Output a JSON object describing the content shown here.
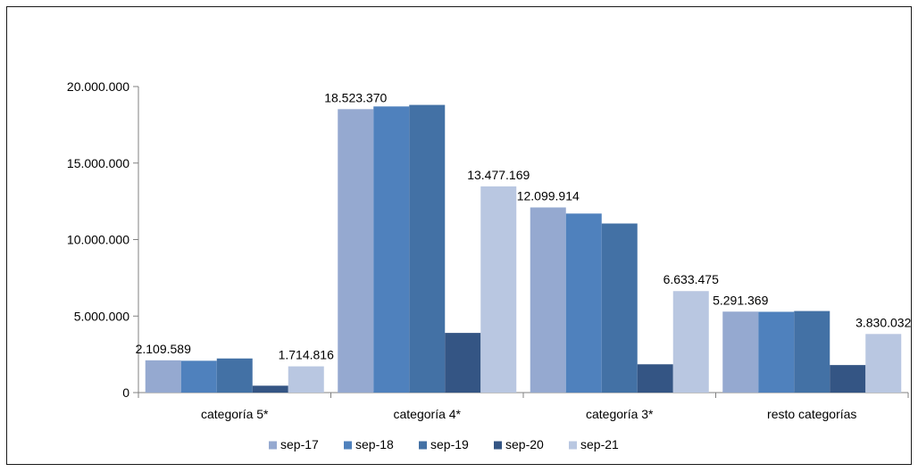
{
  "chart_data": {
    "type": "bar",
    "title": "",
    "xlabel": "",
    "ylabel": "",
    "categories": [
      "categoría 5*",
      "categoría 4*",
      "categoría 3*",
      "resto categorías"
    ],
    "ylim": [
      0,
      20000000
    ],
    "yticks": [
      0,
      5000000,
      10000000,
      15000000,
      20000000
    ],
    "ytick_labels": [
      "0",
      "5.000.000",
      "10.000.000",
      "15.000.000",
      "20.000.000"
    ],
    "grid": false,
    "legend_position": "bottom",
    "series": [
      {
        "name": "sep-17",
        "color": "#95a9d0",
        "values": [
          2109589,
          18523370,
          12099914,
          5291369
        ]
      },
      {
        "name": "sep-18",
        "color": "#4f81bd",
        "values": [
          2080000,
          18700000,
          11700000,
          5280000
        ]
      },
      {
        "name": "sep-19",
        "color": "#4371a5",
        "values": [
          2230000,
          18800000,
          11050000,
          5330000
        ]
      },
      {
        "name": "sep-20",
        "color": "#345584",
        "values": [
          450000,
          3900000,
          1850000,
          1800000
        ]
      },
      {
        "name": "sep-21",
        "color": "#b9c7e1",
        "values": [
          1714816,
          13477169,
          6633475,
          3830032
        ]
      }
    ],
    "data_labels": [
      {
        "category": 0,
        "series": 0,
        "text": "2.109.589"
      },
      {
        "category": 0,
        "series": 4,
        "text": "1.714.816"
      },
      {
        "category": 1,
        "series": 0,
        "text": "18.523.370"
      },
      {
        "category": 1,
        "series": 4,
        "text": "13.477.169"
      },
      {
        "category": 2,
        "series": 0,
        "text": "12.099.914"
      },
      {
        "category": 2,
        "series": 4,
        "text": "6.633.475"
      },
      {
        "category": 3,
        "series": 0,
        "text": "5.291.369"
      },
      {
        "category": 3,
        "series": 4,
        "text": "3.830.032"
      }
    ]
  }
}
